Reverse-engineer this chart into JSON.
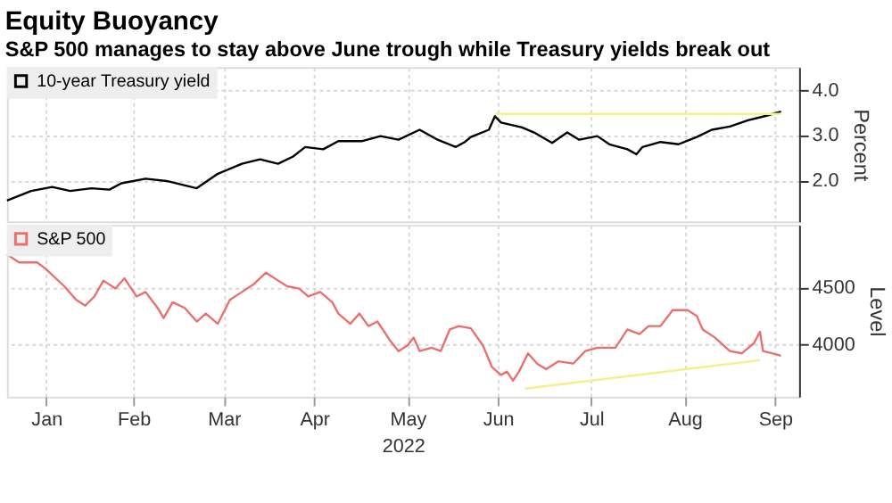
{
  "chart_data": [
    {
      "type": "line",
      "title": "Equity Buoyancy",
      "subtitle": "S&P 500 manages to stay above June trough while Treasury yields break out",
      "xlim": [
        "2022-01-03",
        "2022-09-23"
      ],
      "xticks": [
        {
          "value": "2022-01-16",
          "label": null
        },
        {
          "value": "2022-02-14",
          "label": null
        },
        {
          "value": "2022-03-16",
          "label": null
        },
        {
          "value": "2022-04-15",
          "label": null
        },
        {
          "value": "2022-05-16",
          "label": null
        },
        {
          "value": "2022-06-15",
          "label": null
        },
        {
          "value": "2022-07-16",
          "label": null
        },
        {
          "value": "2022-08-16",
          "label": null
        },
        {
          "value": "2022-09-15",
          "label": null
        }
      ],
      "ylim": [
        1.1,
        4.5
      ],
      "yticks": [
        {
          "value": 2,
          "label": "2.0"
        },
        {
          "value": 3,
          "label": "3.0"
        },
        {
          "value": 4,
          "label": "4.0"
        }
      ],
      "ylabel": "Percent",
      "tick_labels": "y",
      "grid": true,
      "legend": "top left",
      "marker": "none",
      "line_style": "solid",
      "series": [
        {
          "name": "10-year Treasury yield",
          "color": "#000000",
          "x": [
            "2022-01-03",
            "2022-01-11",
            "2022-01-18",
            "2022-01-24",
            "2022-01-31",
            "2022-02-06",
            "2022-02-10",
            "2022-02-18",
            "2022-02-25",
            "2022-03-07",
            "2022-03-14",
            "2022-03-22",
            "2022-03-28",
            "2022-04-03",
            "2022-04-08",
            "2022-04-12",
            "2022-04-18",
            "2022-04-23",
            "2022-05-01",
            "2022-05-07",
            "2022-05-13",
            "2022-05-20",
            "2022-05-26",
            "2022-06-01",
            "2022-06-04",
            "2022-06-06",
            "2022-06-12",
            "2022-06-14",
            "2022-06-16",
            "2022-06-23",
            "2022-06-27",
            "2022-07-03",
            "2022-07-08",
            "2022-07-12",
            "2022-07-18",
            "2022-07-22",
            "2022-07-28",
            "2022-07-31",
            "2022-08-02",
            "2022-08-08",
            "2022-08-14",
            "2022-08-20",
            "2022-08-25",
            "2022-08-31",
            "2022-09-06",
            "2022-09-11",
            "2022-09-17"
          ],
          "values": [
            1.56,
            1.77,
            1.86,
            1.77,
            1.83,
            1.8,
            1.94,
            2.04,
            1.99,
            1.83,
            2.15,
            2.37,
            2.47,
            2.37,
            2.53,
            2.74,
            2.69,
            2.87,
            2.87,
            2.98,
            2.9,
            3.12,
            2.9,
            2.74,
            2.85,
            2.96,
            3.12,
            3.42,
            3.28,
            3.17,
            3.06,
            2.83,
            3.06,
            2.9,
            2.98,
            2.8,
            2.69,
            2.58,
            2.74,
            2.85,
            2.8,
            2.96,
            3.12,
            3.19,
            3.33,
            3.41,
            3.52
          ]
        },
        {
          "color": "#f5ef8c",
          "x": [
            "2022-06-14",
            "2022-09-17"
          ],
          "values": [
            3.47,
            3.47
          ]
        }
      ]
    },
    {
      "type": "line",
      "xlabel": "2022",
      "xlim": [
        "2022-01-03",
        "2022-09-23"
      ],
      "xticks": [
        {
          "value": "2022-01-16",
          "label": "Jan"
        },
        {
          "value": "2022-02-14",
          "label": "Feb"
        },
        {
          "value": "2022-03-16",
          "label": "Mar"
        },
        {
          "value": "2022-04-15",
          "label": "Apr"
        },
        {
          "value": "2022-05-16",
          "label": "May"
        },
        {
          "value": "2022-06-15",
          "label": "Jun"
        },
        {
          "value": "2022-07-16",
          "label": "Jul"
        },
        {
          "value": "2022-08-16",
          "label": "Aug"
        },
        {
          "value": "2022-09-15",
          "label": "Sep"
        }
      ],
      "ylim": [
        3540,
        5050
      ],
      "yticks": [
        4000,
        4500
      ],
      "ylabel": "Level",
      "grid": true,
      "legend": "top left",
      "marker": "none",
      "line_style": "solid",
      "series": [
        {
          "name": "S&P 500",
          "color": "#e8706e",
          "x": [
            "2022-01-03",
            "2022-01-07",
            "2022-01-13",
            "2022-01-16",
            "2022-01-22",
            "2022-01-26",
            "2022-01-29",
            "2022-02-01",
            "2022-02-04",
            "2022-02-08",
            "2022-02-11",
            "2022-02-15",
            "2022-02-18",
            "2022-02-22",
            "2022-02-24",
            "2022-02-27",
            "2022-03-03",
            "2022-03-07",
            "2022-03-10",
            "2022-03-14",
            "2022-03-18",
            "2022-03-22",
            "2022-03-26",
            "2022-03-30",
            "2022-04-03",
            "2022-04-06",
            "2022-04-10",
            "2022-04-13",
            "2022-04-17",
            "2022-04-21",
            "2022-04-23",
            "2022-04-27",
            "2022-04-30",
            "2022-05-03",
            "2022-05-06",
            "2022-05-10",
            "2022-05-13",
            "2022-05-16",
            "2022-05-18",
            "2022-05-20",
            "2022-05-24",
            "2022-05-27",
            "2022-05-30",
            "2022-06-02",
            "2022-06-06",
            "2022-06-10",
            "2022-06-13",
            "2022-06-16",
            "2022-06-18",
            "2022-06-20",
            "2022-06-22",
            "2022-06-25",
            "2022-06-28",
            "2022-07-01",
            "2022-07-05",
            "2022-07-10",
            "2022-07-14",
            "2022-07-18",
            "2022-07-24",
            "2022-07-28",
            "2022-08-01",
            "2022-08-04",
            "2022-08-08",
            "2022-08-12",
            "2022-08-17",
            "2022-08-20",
            "2022-08-22",
            "2022-08-26",
            "2022-08-31",
            "2022-09-04",
            "2022-09-08",
            "2022-09-10",
            "2022-09-11",
            "2022-09-14",
            "2022-09-17"
          ],
          "values": [
            4790,
            4720,
            4720,
            4660,
            4510,
            4390,
            4340,
            4420,
            4560,
            4490,
            4580,
            4420,
            4460,
            4320,
            4230,
            4370,
            4320,
            4200,
            4270,
            4180,
            4390,
            4460,
            4530,
            4630,
            4560,
            4510,
            4490,
            4420,
            4460,
            4370,
            4270,
            4180,
            4270,
            4160,
            4200,
            4040,
            3940,
            3990,
            4060,
            3940,
            3970,
            3940,
            4130,
            4160,
            4140,
            3990,
            3800,
            3730,
            3760,
            3680,
            3760,
            3920,
            3830,
            3780,
            3850,
            3830,
            3940,
            3970,
            3970,
            4130,
            4090,
            4160,
            4160,
            4300,
            4300,
            4250,
            4130,
            4060,
            3940,
            3920,
            4010,
            4110,
            3940,
            3920,
            3900
          ]
        },
        {
          "color": "#f5ef8c",
          "x": [
            "2022-06-24",
            "2022-09-10"
          ],
          "values": [
            3610,
            3860
          ]
        }
      ]
    }
  ]
}
